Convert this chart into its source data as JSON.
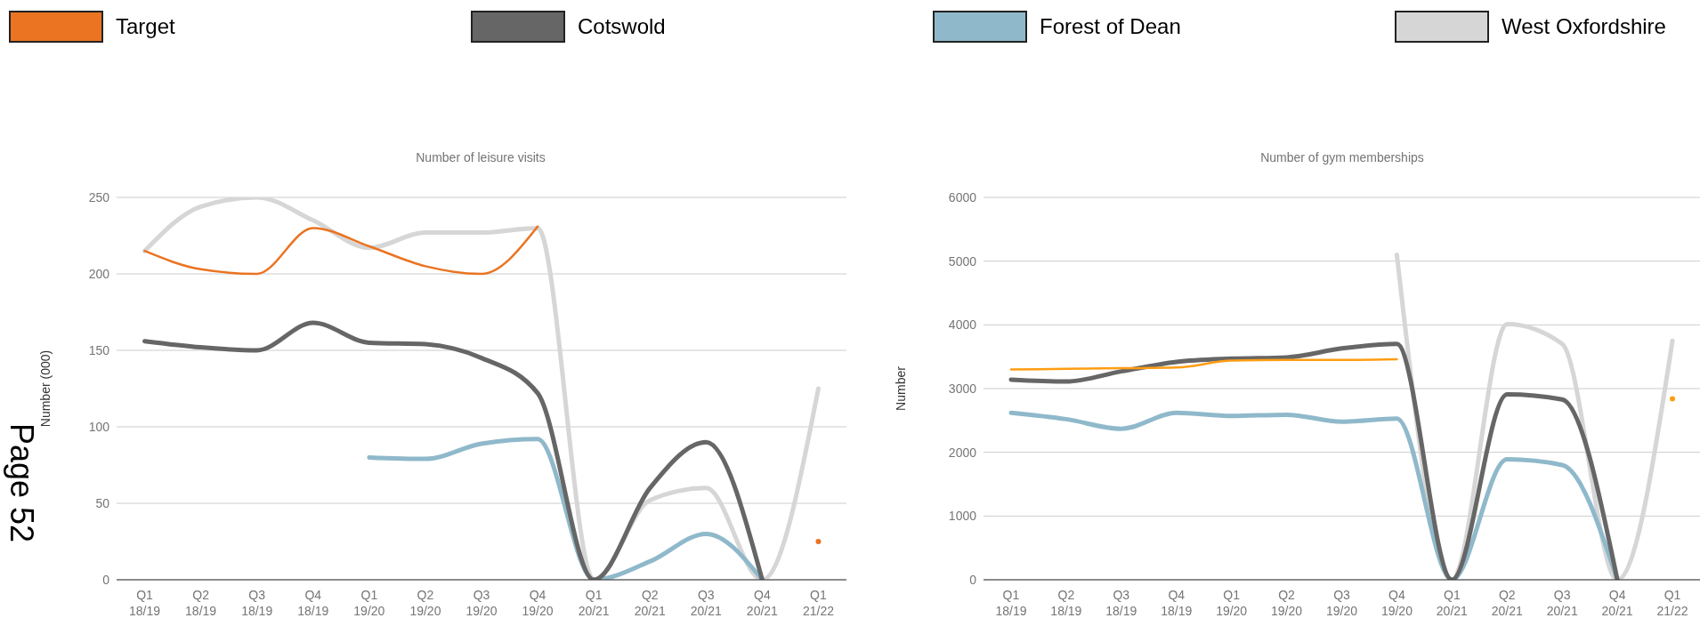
{
  "chart_data": [
    {
      "type": "line",
      "title": "Number of leisure visits",
      "ylabel": "Number (000)",
      "annotations": [
        "Page 52"
      ],
      "categories": [
        "Q1 18/19",
        "Q2 18/19",
        "Q3 18/19",
        "Q4 18/19",
        "Q1 19/20",
        "Q2 19/20",
        "Q3 19/20",
        "Q4 19/20",
        "Q1 20/21",
        "Q2 20/21",
        "Q3 20/21",
        "Q4 20/21",
        "Q1 21/22"
      ],
      "ylim": [
        0,
        250
      ],
      "yticks": [
        0,
        50,
        100,
        150,
        200,
        250
      ],
      "grid": "y",
      "legend": "top",
      "series": [
        {
          "name": "Target",
          "color": "#ea7422",
          "values": [
            215,
            203,
            200,
            230,
            218,
            205,
            200,
            231,
            null,
            null,
            null,
            null,
            25
          ]
        },
        {
          "name": "Cotswold",
          "color": "#666666",
          "values": [
            156,
            152,
            150,
            168,
            155,
            154,
            145,
            122,
            0,
            60,
            90,
            0,
            null
          ]
        },
        {
          "name": "Forest of Dean",
          "color": "#8fb9cb",
          "values": [
            null,
            null,
            null,
            null,
            80,
            79,
            89,
            92,
            0,
            12,
            30,
            0,
            null
          ]
        },
        {
          "name": "West Oxfordshire",
          "color": "#d6d6d6",
          "values": [
            215,
            244,
            250,
            235,
            217,
            227,
            227,
            230,
            0,
            52,
            60,
            0,
            125
          ]
        }
      ]
    },
    {
      "type": "line",
      "title": "Number of gym memberships",
      "ylabel": "Number",
      "categories": [
        "Q1 18/19",
        "Q2 18/19",
        "Q3 18/19",
        "Q4 18/19",
        "Q1 19/20",
        "Q2 19/20",
        "Q3 19/20",
        "Q4 19/20",
        "Q1 20/21",
        "Q2 20/21",
        "Q3 20/21",
        "Q4 20/21",
        "Q1 21/22"
      ],
      "ylim": [
        0,
        6000
      ],
      "yticks": [
        0,
        1000,
        2000,
        3000,
        4000,
        5000,
        6000
      ],
      "grid": "y",
      "series": [
        {
          "color": "#ff9d12",
          "values": [
            3300,
            3310,
            3320,
            3330,
            3440,
            3450,
            3450,
            3460,
            null,
            null,
            null,
            null,
            2840
          ]
        },
        {
          "color": "#666666",
          "values": [
            3140,
            3110,
            3270,
            3420,
            3470,
            3490,
            3630,
            3700,
            0,
            2910,
            2830,
            0,
            null
          ]
        },
        {
          "color": "#8fb9cb",
          "values": [
            2620,
            2520,
            2370,
            2620,
            2570,
            2590,
            2480,
            2530,
            0,
            1890,
            1800,
            0,
            null
          ]
        },
        {
          "color": "#d6d6d6",
          "values": [
            null,
            null,
            null,
            null,
            null,
            null,
            null,
            5100,
            0,
            4010,
            3700,
            0,
            3750
          ]
        }
      ]
    }
  ]
}
